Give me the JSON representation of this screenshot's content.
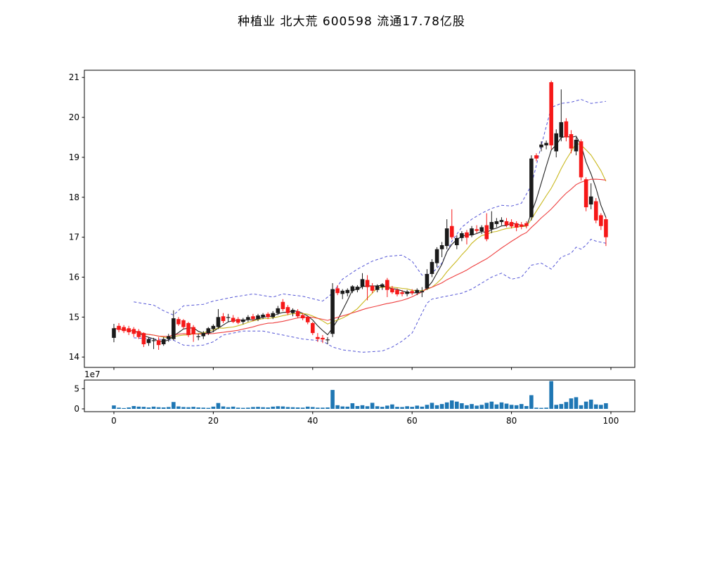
{
  "title": "种植业  北大荒  600598  流通17.78亿股",
  "chart_data": {
    "type": "candlestick+volume",
    "title": "种植业  北大荒  600598  流通17.78亿股",
    "xlabel": "",
    "ylabel": "",
    "xlim": [
      -5.94,
      104.81
    ],
    "ylim": [
      13.74,
      21.18
    ],
    "vlim": [
      -7000000,
      71600000
    ],
    "x_ticks": [
      0,
      20,
      40,
      60,
      80,
      100
    ],
    "price_ticks": [
      14,
      15,
      16,
      17,
      18,
      19,
      20,
      21
    ],
    "volume_ticks": [
      {
        "v": 0,
        "label": "0"
      },
      {
        "v": 50000000,
        "label": "5"
      }
    ],
    "volume_offset_label": "1e7",
    "grid": false,
    "legend": "none",
    "colors": {
      "up": "#1a1a1a",
      "down": "#f61818",
      "volume": "#1f77b4",
      "ma_fast": "#222222",
      "ma_mid": "#c9b81e",
      "ma_slow": "#ee4040",
      "band": "#5456d6",
      "axis": "#000000",
      "background": "#ffffff"
    },
    "overlays": [
      {
        "type": "sma",
        "name": "MA5",
        "window": 5,
        "color": "#222222"
      },
      {
        "type": "sma",
        "name": "MA10",
        "window": 10,
        "color": "#c9b81e"
      },
      {
        "type": "sma",
        "name": "MA20",
        "window": 20,
        "color": "#ee4040"
      }
    ],
    "bands": {
      "name": "bollinger-band",
      "style": "dashed",
      "upper": [
        [
          4,
          15.38
        ],
        [
          8,
          15.3
        ],
        [
          10,
          15.16
        ],
        [
          12,
          15.05
        ],
        [
          14,
          15.28
        ],
        [
          18,
          15.32
        ],
        [
          20,
          15.4
        ],
        [
          24,
          15.5
        ],
        [
          28,
          15.58
        ],
        [
          32,
          15.5
        ],
        [
          34,
          15.58
        ],
        [
          38,
          15.52
        ],
        [
          42,
          15.4
        ],
        [
          44,
          15.6
        ],
        [
          46,
          15.95
        ],
        [
          49,
          16.2
        ],
        [
          52,
          16.4
        ],
        [
          55,
          16.52
        ],
        [
          58,
          16.55
        ],
        [
          60,
          16.4
        ],
        [
          62,
          16.05
        ],
        [
          64,
          16.1
        ],
        [
          66,
          16.35
        ],
        [
          68,
          16.9
        ],
        [
          70,
          17.25
        ],
        [
          72,
          17.45
        ],
        [
          74,
          17.6
        ],
        [
          76,
          17.72
        ],
        [
          78,
          17.8
        ],
        [
          80,
          17.78
        ],
        [
          82,
          17.85
        ],
        [
          84,
          18.3
        ],
        [
          86,
          19.3
        ],
        [
          88,
          20.25
        ],
        [
          90,
          20.35
        ],
        [
          92,
          20.38
        ],
        [
          94,
          20.45
        ],
        [
          96,
          20.35
        ],
        [
          99,
          20.4
        ]
      ],
      "lower": [
        [
          4,
          14.48
        ],
        [
          8,
          14.45
        ],
        [
          12,
          14.42
        ],
        [
          14,
          14.3
        ],
        [
          16,
          14.28
        ],
        [
          18,
          14.3
        ],
        [
          20,
          14.38
        ],
        [
          22,
          14.55
        ],
        [
          26,
          14.65
        ],
        [
          30,
          14.65
        ],
        [
          34,
          14.55
        ],
        [
          38,
          14.45
        ],
        [
          42,
          14.4
        ],
        [
          44,
          14.25
        ],
        [
          46,
          14.18
        ],
        [
          50,
          14.12
        ],
        [
          54,
          14.15
        ],
        [
          56,
          14.25
        ],
        [
          58,
          14.4
        ],
        [
          60,
          14.6
        ],
        [
          62,
          15.1
        ],
        [
          63,
          15.35
        ],
        [
          64,
          15.45
        ],
        [
          66,
          15.5
        ],
        [
          68,
          15.55
        ],
        [
          70,
          15.6
        ],
        [
          72,
          15.7
        ],
        [
          74,
          15.85
        ],
        [
          76,
          16.0
        ],
        [
          78,
          16.1
        ],
        [
          80,
          15.95
        ],
        [
          82,
          16.0
        ],
        [
          84,
          16.3
        ],
        [
          86,
          16.35
        ],
        [
          88,
          16.2
        ],
        [
          90,
          16.5
        ],
        [
          92,
          16.6
        ],
        [
          93,
          16.75
        ],
        [
          94,
          16.7
        ],
        [
          95,
          16.8
        ],
        [
          96,
          16.95
        ],
        [
          97,
          16.9
        ],
        [
          99,
          16.85
        ]
      ]
    },
    "candles": [
      [
        14.48,
        14.83,
        14.37,
        14.72
      ],
      [
        14.78,
        14.85,
        14.62,
        14.68
      ],
      [
        14.75,
        14.8,
        14.6,
        14.65
      ],
      [
        14.72,
        14.78,
        14.55,
        14.62
      ],
      [
        14.7,
        14.75,
        14.5,
        14.58
      ],
      [
        14.65,
        14.7,
        14.45,
        14.5
      ],
      [
        14.6,
        14.62,
        14.25,
        14.32
      ],
      [
        14.35,
        14.5,
        14.28,
        14.45
      ],
      [
        14.4,
        14.48,
        14.2,
        14.42
      ],
      [
        14.42,
        14.5,
        14.18,
        14.3
      ],
      [
        14.32,
        14.5,
        14.28,
        14.45
      ],
      [
        14.45,
        14.58,
        14.38,
        14.52
      ],
      [
        14.45,
        15.17,
        14.42,
        14.97
      ],
      [
        14.95,
        15.0,
        14.78,
        14.82
      ],
      [
        14.92,
        14.95,
        14.7,
        14.75
      ],
      [
        14.85,
        14.88,
        14.5,
        14.55
      ],
      [
        14.75,
        14.8,
        14.38,
        14.57
      ],
      [
        14.5,
        14.58,
        14.42,
        14.52
      ],
      [
        14.52,
        14.65,
        14.45,
        14.6
      ],
      [
        14.6,
        14.75,
        14.55,
        14.72
      ],
      [
        14.7,
        14.82,
        14.62,
        14.78
      ],
      [
        14.75,
        15.2,
        14.7,
        15.0
      ],
      [
        15.02,
        15.1,
        14.85,
        14.9
      ],
      [
        14.98,
        15.08,
        14.88,
        15.0
      ],
      [
        14.98,
        15.05,
        14.85,
        14.88
      ],
      [
        14.95,
        15.0,
        14.82,
        14.86
      ],
      [
        14.88,
        14.98,
        14.82,
        14.94
      ],
      [
        14.94,
        15.05,
        14.88,
        15.0
      ],
      [
        15.02,
        15.08,
        14.9,
        14.95
      ],
      [
        14.95,
        15.08,
        14.9,
        15.04
      ],
      [
        15.0,
        15.1,
        14.95,
        15.06
      ],
      [
        15.08,
        15.12,
        14.95,
        15.0
      ],
      [
        15.0,
        15.15,
        14.95,
        15.1
      ],
      [
        15.1,
        15.28,
        15.05,
        15.22
      ],
      [
        15.38,
        15.45,
        15.15,
        15.2
      ],
      [
        15.25,
        15.3,
        15.05,
        15.1
      ],
      [
        15.1,
        15.22,
        15.02,
        15.18
      ],
      [
        15.15,
        15.2,
        14.98,
        15.02
      ],
      [
        15.05,
        15.1,
        14.92,
        14.97
      ],
      [
        15.0,
        15.02,
        14.82,
        14.87
      ],
      [
        14.85,
        14.88,
        14.55,
        14.6
      ],
      [
        14.5,
        14.6,
        14.38,
        14.45
      ],
      [
        14.48,
        14.55,
        14.35,
        14.44
      ],
      [
        14.42,
        14.5,
        14.32,
        14.44
      ],
      [
        14.58,
        15.85,
        14.5,
        15.7
      ],
      [
        15.72,
        15.8,
        15.55,
        15.6
      ],
      [
        15.58,
        15.7,
        15.45,
        15.66
      ],
      [
        15.6,
        15.72,
        15.52,
        15.68
      ],
      [
        15.65,
        15.8,
        15.6,
        15.77
      ],
      [
        15.68,
        15.8,
        15.62,
        15.76
      ],
      [
        15.76,
        16.1,
        15.7,
        15.95
      ],
      [
        15.93,
        16.05,
        15.42,
        15.75
      ],
      [
        15.78,
        15.85,
        15.6,
        15.66
      ],
      [
        15.68,
        15.82,
        15.62,
        15.79
      ],
      [
        15.75,
        15.85,
        15.68,
        15.82
      ],
      [
        15.93,
        15.98,
        15.5,
        15.68
      ],
      [
        15.72,
        15.78,
        15.58,
        15.62
      ],
      [
        15.68,
        15.72,
        15.52,
        15.57
      ],
      [
        15.62,
        15.68,
        15.52,
        15.58
      ],
      [
        15.58,
        15.68,
        15.52,
        15.64
      ],
      [
        15.65,
        15.7,
        15.55,
        15.6
      ],
      [
        15.6,
        15.72,
        15.55,
        15.68
      ],
      [
        15.62,
        15.75,
        15.5,
        15.65
      ],
      [
        15.72,
        16.2,
        15.68,
        16.08
      ],
      [
        16.08,
        16.45,
        16.0,
        16.38
      ],
      [
        16.35,
        16.75,
        16.25,
        16.7
      ],
      [
        16.7,
        16.88,
        16.5,
        16.8
      ],
      [
        16.78,
        17.45,
        16.7,
        17.22
      ],
      [
        17.28,
        17.7,
        16.95,
        17.0
      ],
      [
        16.8,
        17.05,
        16.7,
        16.98
      ],
      [
        16.98,
        17.15,
        16.9,
        17.1
      ],
      [
        17.12,
        17.18,
        16.82,
        16.99
      ],
      [
        17.05,
        17.28,
        17.0,
        17.22
      ],
      [
        17.2,
        17.3,
        17.1,
        17.16
      ],
      [
        17.15,
        17.3,
        17.08,
        17.25
      ],
      [
        17.3,
        17.6,
        16.9,
        16.95
      ],
      [
        17.2,
        17.65,
        17.1,
        17.38
      ],
      [
        17.33,
        17.48,
        17.25,
        17.4
      ],
      [
        17.38,
        17.5,
        17.3,
        17.43
      ],
      [
        17.4,
        17.48,
        17.25,
        17.3
      ],
      [
        17.38,
        17.45,
        17.22,
        17.27
      ],
      [
        17.35,
        17.4,
        17.15,
        17.24
      ],
      [
        17.32,
        17.38,
        17.2,
        17.26
      ],
      [
        17.35,
        17.4,
        17.22,
        17.28
      ],
      [
        17.5,
        19.05,
        17.42,
        18.97
      ],
      [
        19.05,
        19.1,
        18.9,
        18.97
      ],
      [
        19.25,
        19.4,
        19.15,
        19.32
      ],
      [
        19.3,
        19.42,
        19.2,
        19.36
      ],
      [
        20.88,
        20.92,
        19.2,
        19.3
      ],
      [
        19.15,
        19.7,
        19.0,
        19.6
      ],
      [
        19.5,
        20.7,
        19.4,
        19.88
      ],
      [
        19.9,
        19.98,
        19.4,
        19.5
      ],
      [
        19.58,
        19.68,
        19.1,
        19.22
      ],
      [
        19.15,
        19.5,
        19.05,
        19.44
      ],
      [
        19.4,
        19.45,
        18.42,
        18.5
      ],
      [
        18.45,
        18.5,
        17.65,
        17.75
      ],
      [
        17.82,
        18.35,
        17.7,
        18.02
      ],
      [
        17.9,
        17.98,
        17.35,
        17.42
      ],
      [
        17.55,
        17.6,
        17.18,
        17.28
      ],
      [
        17.45,
        17.5,
        16.78,
        17.0
      ]
    ],
    "volumes": [
      8500000,
      3000000,
      2000000,
      3500000,
      7000000,
      5500000,
      5000000,
      3500000,
      5500000,
      4000000,
      3500000,
      4500000,
      17000000,
      6000000,
      4500000,
      4000000,
      5000000,
      3500000,
      3000000,
      2500000,
      5500000,
      14500000,
      6000000,
      4000000,
      5500000,
      3000000,
      2500000,
      3000000,
      4500000,
      5000000,
      4000000,
      3500000,
      5500000,
      6500000,
      6000000,
      4500000,
      4000000,
      3500000,
      3000000,
      5500000,
      4500000,
      3000000,
      3000000,
      3500000,
      47000000,
      9000000,
      6000000,
      5500000,
      14000000,
      7000000,
      9000000,
      6500000,
      15000000,
      6500000,
      5000000,
      8000000,
      11000000,
      5000000,
      4500000,
      6500000,
      5000000,
      8000000,
      5500000,
      10000000,
      15000000,
      9000000,
      12000000,
      16000000,
      21000000,
      18000000,
      14000000,
      9000000,
      12000000,
      8000000,
      10000000,
      15000000,
      18000000,
      11000000,
      16000000,
      13000000,
      10000000,
      9000000,
      12000000,
      7000000,
      34000000,
      3000000,
      2500000,
      3000000,
      69000000,
      10000000,
      12000000,
      17000000,
      26000000,
      29000000,
      9000000,
      18000000,
      23000000,
      11000000,
      10000000,
      14000000
    ]
  }
}
